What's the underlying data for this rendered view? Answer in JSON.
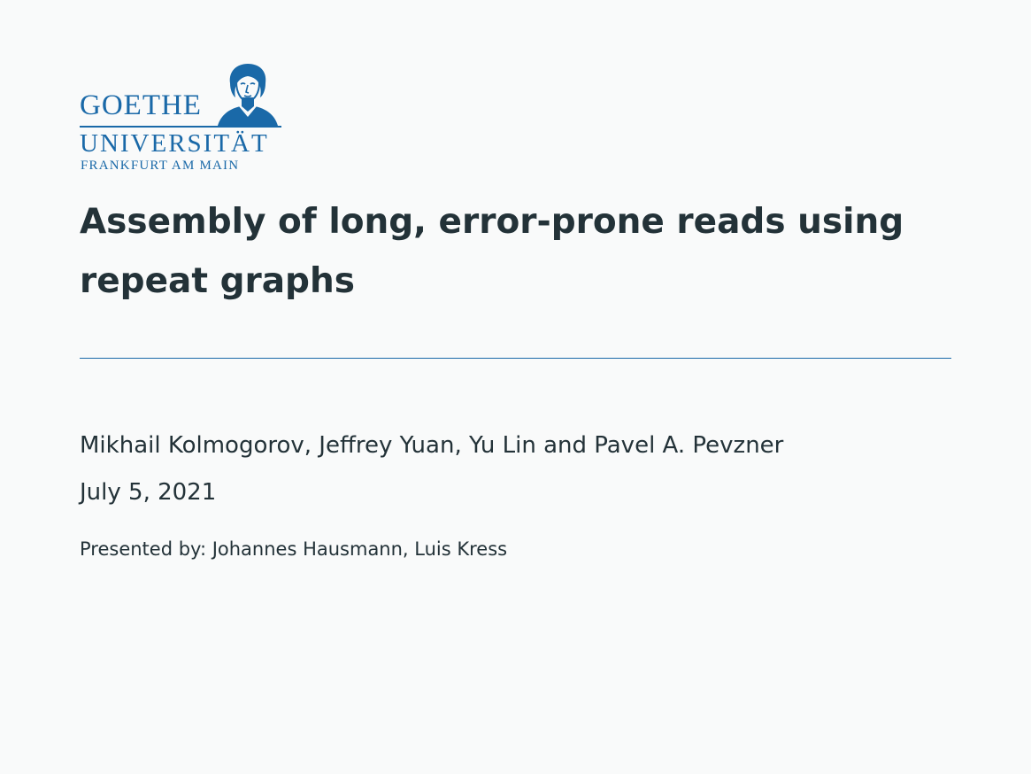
{
  "logo": {
    "line1": "GOETHE",
    "line2": "UNIVERSITÄT",
    "line3": "FRANKFURT AM MAIN"
  },
  "slide": {
    "title": "Assembly of long, error-prone reads using repeat graphs",
    "authors": "Mikhail Kolmogorov, Jeffrey Yuan, Yu Lin and Pavel A. Pevzner",
    "date": "July 5, 2021",
    "presenters": "Presented by: Johannes Hausmann, Luis Kress"
  },
  "colors": {
    "accent": "#1a69a8",
    "text": "#233238",
    "background": "#f9fafa"
  }
}
